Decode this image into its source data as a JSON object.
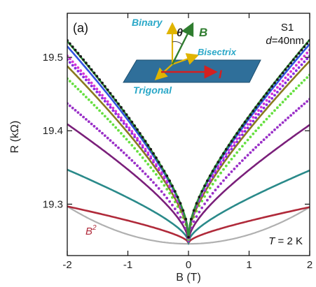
{
  "chart_data": {
    "type": "line",
    "panel_label": "(a)",
    "xlabel": "B (T)",
    "ylabel": "R (kΩ)",
    "xlim": [
      -2,
      2
    ],
    "ylim": [
      19.23,
      19.56
    ],
    "xticks": [
      "-2",
      "-1",
      "0",
      "1",
      "2"
    ],
    "xtick_values": [
      -2,
      -1,
      0,
      1,
      2
    ],
    "yticks": [
      "19.3",
      "19.4",
      "19.5"
    ],
    "ytick_values": [
      19.3,
      19.4,
      19.5
    ],
    "grid": false,
    "annotations": {
      "sample": "S1",
      "thickness_prefix": "d",
      "thickness_value": "=40nm",
      "temperature_prefix": "T",
      "temperature_value": " = 2 K",
      "fit_label": "B",
      "fit_exponent": "2"
    },
    "inset": {
      "binary": "Binary",
      "theta": "θ",
      "field": "B",
      "bisectrix": "Bisectrix",
      "trigonal": "Trigonal",
      "current": "I"
    },
    "series": [
      {
        "color": "#1a1a1a",
        "style": "dots",
        "min": 19.255,
        "left": 19.523,
        "right": 19.523
      },
      {
        "color": "#2f8f3a",
        "style": "line",
        "min": 19.255,
        "left": 19.522,
        "right": 19.524
      },
      {
        "color": "#3355e0",
        "style": "line",
        "min": 19.255,
        "left": 19.515,
        "right": 19.518
      },
      {
        "color": "#d633d6",
        "style": "dots",
        "min": 19.254,
        "left": 19.502,
        "right": 19.51
      },
      {
        "color": "#8a2be2",
        "style": "dots",
        "min": 19.254,
        "left": 19.497,
        "right": 19.502
      },
      {
        "color": "#8a7a1f",
        "style": "line",
        "min": 19.253,
        "left": 19.488,
        "right": 19.495
      },
      {
        "color": "#66e040",
        "style": "dots",
        "min": 19.252,
        "left": 19.471,
        "right": 19.476
      },
      {
        "color": "#9a30c8",
        "style": "dots",
        "min": 19.25,
        "left": 19.437,
        "right": 19.443
      },
      {
        "color": "#7a1f7a",
        "style": "line",
        "min": 19.249,
        "left": 19.409,
        "right": 19.408
      },
      {
        "color": "#2a8a8a",
        "style": "line",
        "min": 19.248,
        "left": 19.347,
        "right": 19.346
      },
      {
        "color": "#b02a3a",
        "style": "line",
        "min": 19.247,
        "left": 19.297,
        "right": 19.296
      },
      {
        "color": "#b0b0b0",
        "style": "fit",
        "min": 19.246,
        "left": 19.297,
        "right": 19.296
      }
    ]
  }
}
